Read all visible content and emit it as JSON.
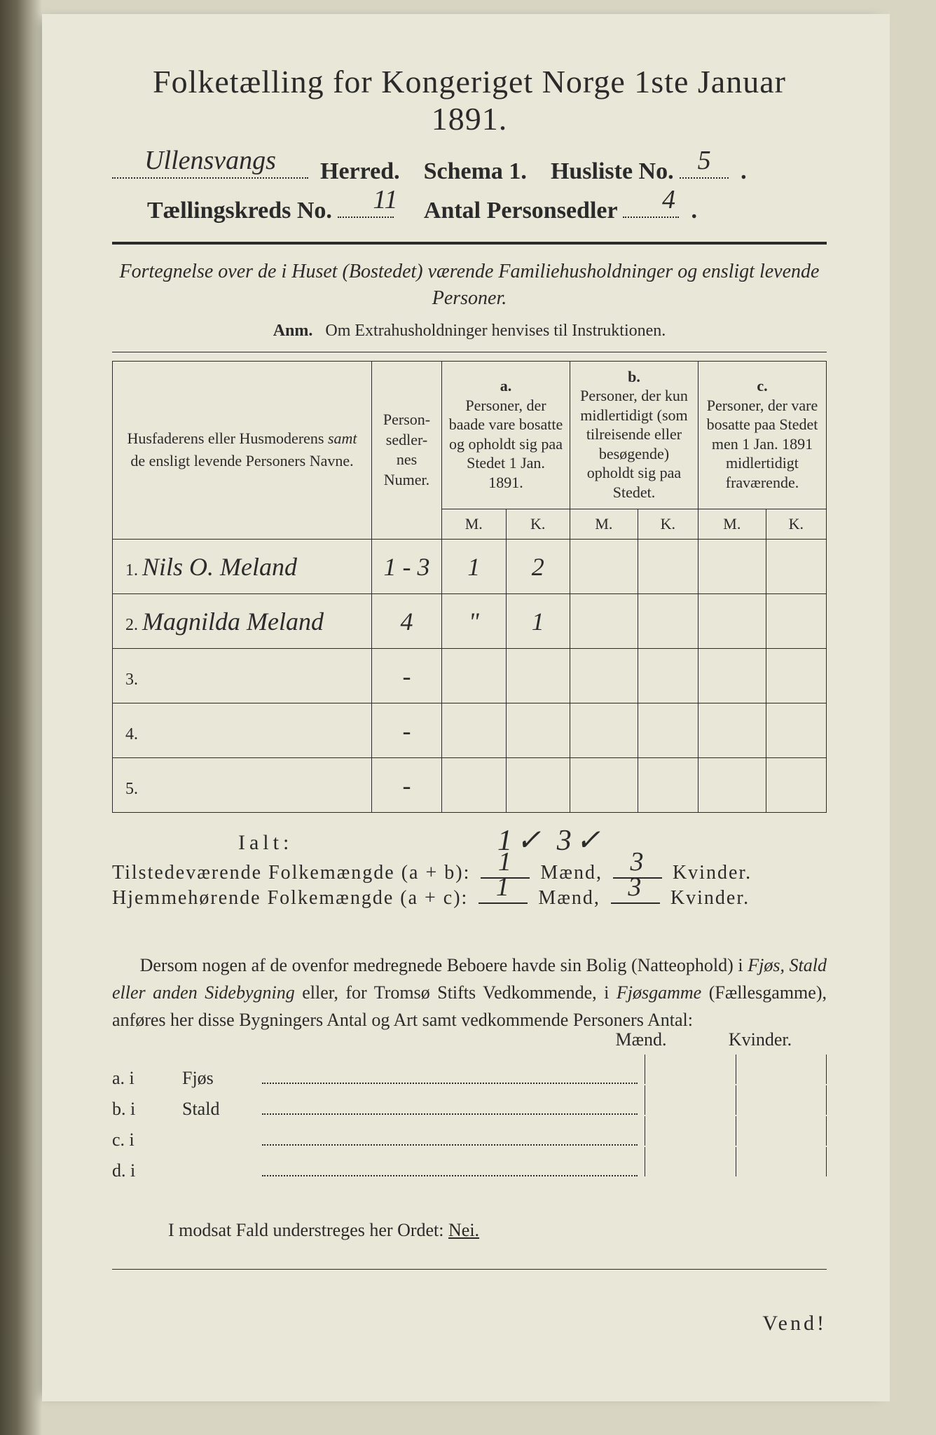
{
  "title": "Folketælling for Kongeriget Norge 1ste Januar 1891.",
  "header": {
    "herred_value": "Ullensvangs",
    "herred_label": "Herred.",
    "schema_label": "Schema 1.",
    "husliste_label": "Husliste No.",
    "husliste_value": "5",
    "kreds_label": "Tællingskreds No.",
    "kreds_value": "11",
    "antal_label": "Antal Personsedler",
    "antal_value": "4"
  },
  "sub1": "Fortegnelse over de i Huset (Bostedet) værende Familiehusholdninger og ensligt levende Personer.",
  "sub2_prefix": "Anm.",
  "sub2_rest": "Om Extrahusholdninger henvises til Instruktionen.",
  "table": {
    "col_names": "Husfaderens eller Husmoderens samt de ensligt levende Personers Navne.",
    "col_num": "Person-\nsedler-\nnes\nNumer.",
    "col_a_t": "a.",
    "col_a": "Personer, der baade vare bosatte og opholdt sig paa Stedet 1 Jan. 1891.",
    "col_b_t": "b.",
    "col_b": "Personer, der kun midlertidigt (som tilreisende eller besøgende) opholdt sig paa Stedet.",
    "col_c_t": "c.",
    "col_c": "Personer, der vare bosatte paa Stedet men 1 Jan. 1891 midlertidigt fraværende.",
    "M": "M.",
    "K": "K.",
    "rows": [
      {
        "n": "1.",
        "name": "Nils O. Meland",
        "num": "1 - 3",
        "aM": "1",
        "aK": "2",
        "bM": "",
        "bK": "",
        "cM": "",
        "cK": ""
      },
      {
        "n": "2.",
        "name": "Magnilda Meland",
        "num": "4",
        "aM": "\"",
        "aK": "1",
        "bM": "",
        "bK": "",
        "cM": "",
        "cK": ""
      },
      {
        "n": "3.",
        "name": "",
        "num": "-",
        "aM": "",
        "aK": "",
        "bM": "",
        "bK": "",
        "cM": "",
        "cK": ""
      },
      {
        "n": "4.",
        "name": "",
        "num": "-",
        "aM": "",
        "aK": "",
        "bM": "",
        "bK": "",
        "cM": "",
        "cK": ""
      },
      {
        "n": "5.",
        "name": "",
        "num": "-",
        "aM": "",
        "aK": "",
        "bM": "",
        "bK": "",
        "cM": "",
        "cK": ""
      }
    ]
  },
  "ialt": "Ialt:",
  "ialt_marks": "1✓  3✓",
  "sum1": {
    "label": "Tilstedeværende Folkemængde (a + b):",
    "m": "1",
    "mlbl": "Mænd,",
    "k": "3",
    "klbl": "Kvinder."
  },
  "sum2": {
    "label": "Hjemmehørende Folkemængde (a + c):",
    "m": "1",
    "mlbl": "Mænd,",
    "k": "3",
    "klbl": "Kvinder."
  },
  "para": "Dersom nogen af de ovenfor medregnede Beboere havde sin Bolig (Natteophold) i Fjøs, Stald eller anden Sidebygning eller, for Tromsø Stifts Vedkommende, i Fjøsgamme (Fællesgamme), anføres her disse Bygningers Antal og Art samt vedkommende Personers Antal:",
  "mk": {
    "maend": "Mænd.",
    "kvinder": "Kvinder.",
    "rows": [
      {
        "p": "a.  i",
        "w": "Fjøs"
      },
      {
        "p": "b.  i",
        "w": "Stald"
      },
      {
        "p": "c.  i",
        "w": ""
      },
      {
        "p": "d.  i",
        "w": ""
      }
    ]
  },
  "nei": {
    "text": "I modsat Fald understreges her Ordet:",
    "word": "Nei."
  },
  "vend": "Vend!",
  "colors": {
    "paper": "#e9e7d8",
    "desk": "#d8d5c3",
    "ink": "#2a2a2a"
  }
}
